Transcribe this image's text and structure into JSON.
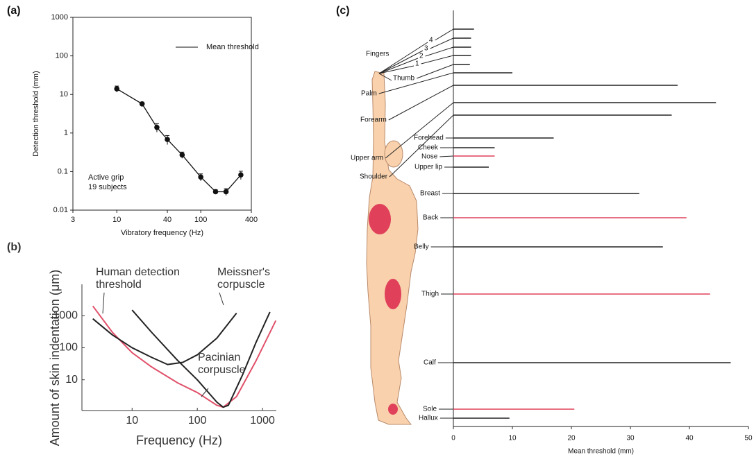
{
  "chart_data": [
    {
      "type": "line",
      "panel_label": "(a)",
      "x": [
        10,
        20,
        30,
        40,
        60,
        100,
        150,
        200,
        300
      ],
      "series": [
        {
          "name": "Mean threshold",
          "color": "#111111",
          "values": [
            14,
            5.7,
            1.4,
            0.68,
            0.27,
            0.072,
            0.03,
            0.03,
            0.082
          ],
          "errors": [
            2.5,
            0.6,
            0.35,
            0.18,
            0.05,
            0.015,
            0.004,
            0.006,
            0.02
          ]
        }
      ],
      "xlim": [
        3,
        400
      ],
      "xticks": [
        3,
        10,
        40,
        100,
        400
      ],
      "ylim": [
        0.01,
        1000
      ],
      "yticks": [
        0.01,
        0.1,
        1,
        10,
        100,
        1000
      ],
      "log_x": true,
      "log_y": true,
      "legend": "upper right",
      "xlabel": "Vibratory frequency (Hz)",
      "ylabel": "Detection threshold (mm)",
      "annotation": [
        "Active grip",
        "19 subjects"
      ]
    },
    {
      "type": "line",
      "panel_label": "(b)",
      "series": [
        {
          "color": "#e0506a",
          "x": [
            2.5,
            5,
            10,
            20,
            50,
            100,
            200,
            250,
            400,
            800,
            1600
          ],
          "values": [
            2000,
            300,
            70,
            25,
            8,
            4,
            1.6,
            1.4,
            3,
            40,
            700
          ]
        },
        {
          "color": "#222222",
          "x": [
            2.5,
            5,
            10,
            20,
            35,
            60,
            100,
            200,
            400
          ],
          "values": [
            800,
            250,
            100,
            50,
            30,
            35,
            60,
            200,
            1200
          ]
        },
        {
          "color": "#222222",
          "x": [
            10,
            20,
            50,
            100,
            200,
            250,
            300,
            500,
            800,
            1300
          ],
          "values": [
            1500,
            300,
            40,
            10,
            2,
            1.4,
            1.6,
            15,
            150,
            1300
          ]
        }
      ],
      "xlim": [
        1.7,
        1630
      ],
      "xticks": [
        10,
        100,
        1000
      ],
      "ylim": [
        1.1,
        9500
      ],
      "yticks": [
        10,
        100,
        1000
      ],
      "log_x": true,
      "log_y": true,
      "xlabel": "Frequency (Hz)",
      "ylabel": "Amount of skin indentation (μm)",
      "annotations": [
        [
          "Human detection",
          "threshold"
        ],
        [
          "Meissner's",
          "corpuscle"
        ],
        [
          "Pacinian",
          "corpuscle"
        ]
      ]
    },
    {
      "type": "bar",
      "orientation": "horizontal",
      "panel_label": "(c)",
      "group_label": "Fingers",
      "categories": [
        "4",
        "3",
        "2",
        "1",
        "Thumb",
        "Palm",
        "Forearm",
        "Upper arm",
        "Shoulder",
        "Forehead",
        "Cheek",
        "Nose",
        "Upper lip",
        "Breast",
        "Back",
        "Belly",
        "Thigh",
        "Calf",
        "Sole",
        "Hallux"
      ],
      "values": [
        3.5,
        3,
        3,
        3,
        2.8,
        10,
        38,
        44.5,
        37,
        17,
        7,
        7,
        6,
        31.5,
        39.5,
        35.5,
        43.5,
        47,
        20.5,
        9.5
      ],
      "colors": [
        "#222222",
        "#222222",
        "#222222",
        "#222222",
        "#222222",
        "#222222",
        "#222222",
        "#222222",
        "#222222",
        "#222222",
        "#222222",
        "#e0405a",
        "#222222",
        "#222222",
        "#e0405a",
        "#222222",
        "#e0405a",
        "#222222",
        "#e0405a",
        "#222222"
      ],
      "xlim": [
        0,
        50
      ],
      "xticks": [
        0,
        10,
        20,
        30,
        40,
        50
      ],
      "xlabel": "Mean threshold (mm)"
    }
  ]
}
